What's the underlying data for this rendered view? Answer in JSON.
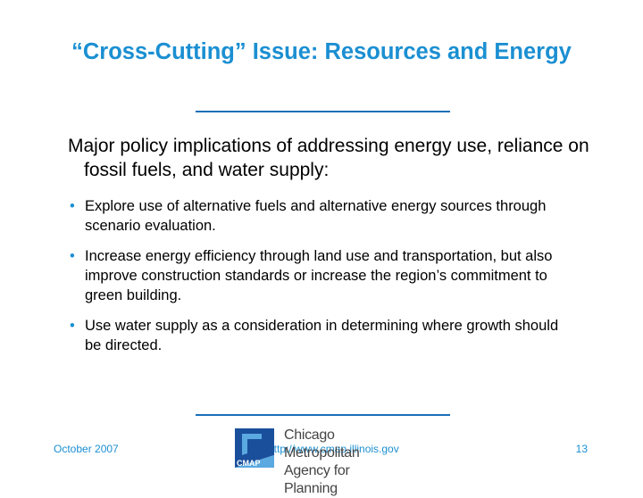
{
  "slide": {
    "title": "“Cross-Cutting” Issue: Resources and Energy",
    "intro": "Major policy implications of addressing energy use, reliance on fossil fuels, and water supply:",
    "bullets": [
      "Explore use of alternative fuels and alternative energy sources through scenario evaluation.",
      "Increase energy efficiency through land use and transportation, but also improve construction standards or increase the region’s commitment to green building.",
      "Use water supply as a consideration in determining where growth should be directed."
    ],
    "bullet_glyph": "•"
  },
  "footer": {
    "date": "October 2007",
    "url": "http://www.cmap.illinois.gov",
    "page": "13"
  },
  "logo": {
    "line1": "Chicago Metropolitan",
    "line2": "Agency for Planning",
    "mark_text": "CMAP",
    "mark_icon": "cmap-logo-icon",
    "colors": {
      "dark_blue": "#1a4f9c",
      "light_blue": "#5aa9e0"
    }
  },
  "colors": {
    "title": "#1b8fd2",
    "rule": "#1a6fb8",
    "footer": "#1b8fd2"
  }
}
